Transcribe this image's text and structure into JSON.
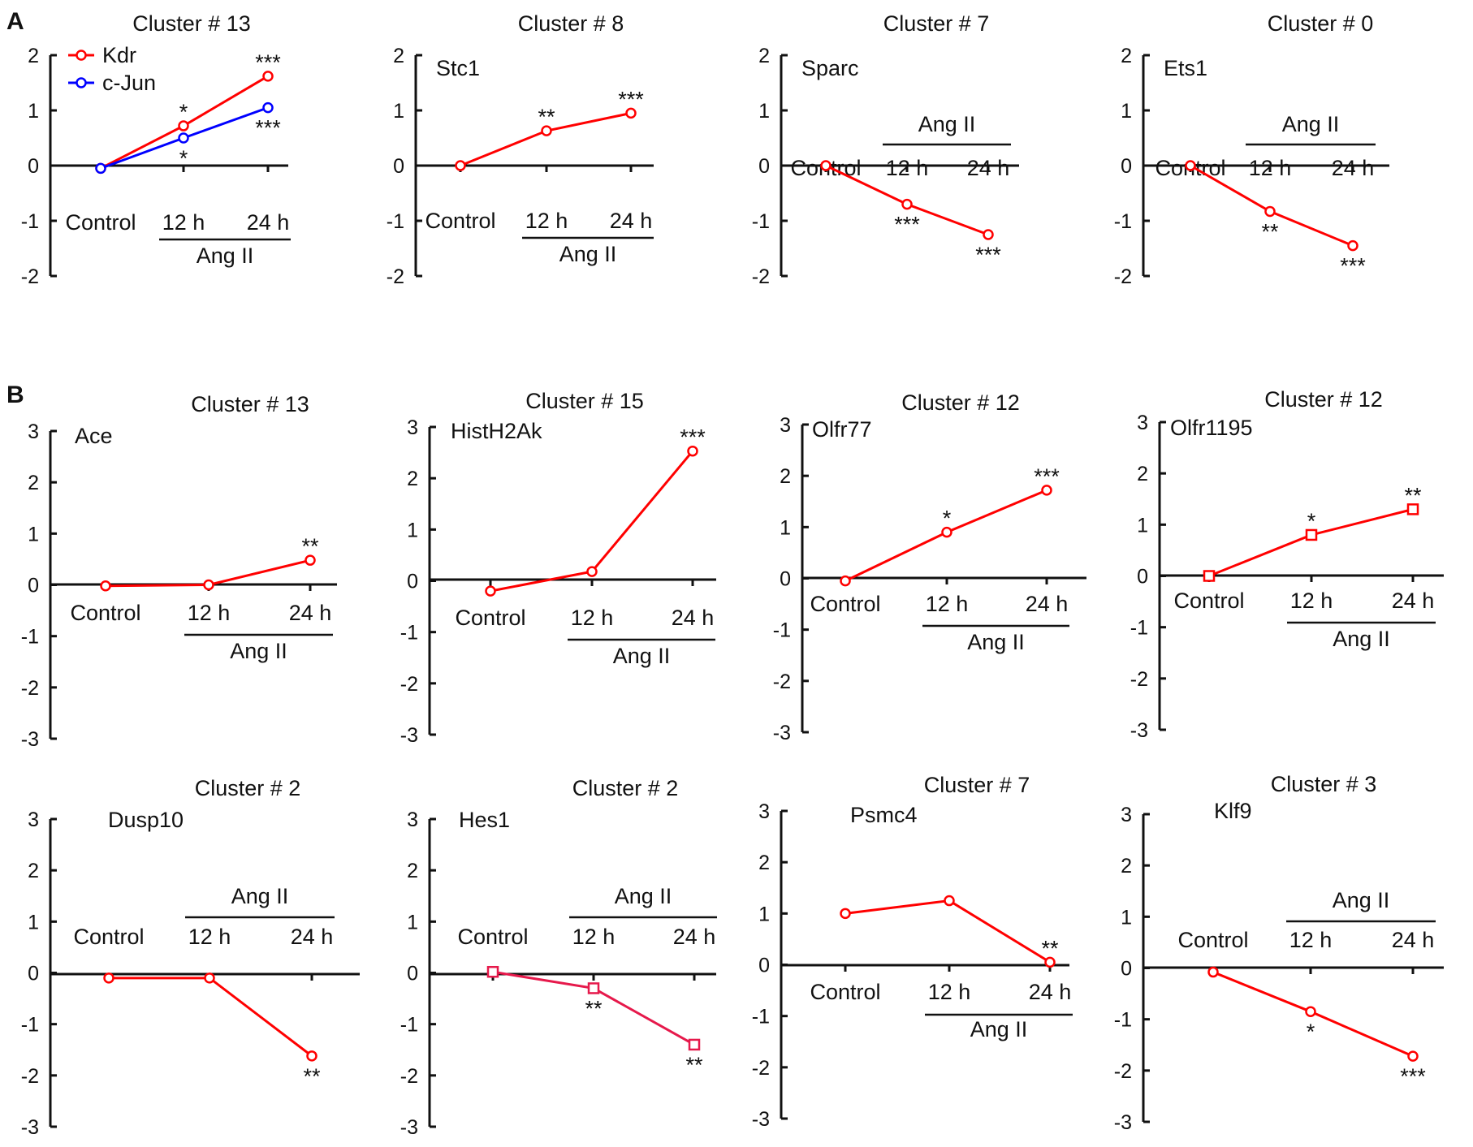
{
  "figure": {
    "panel_labels": [
      "A",
      "B"
    ],
    "bracket_label": "Ang II"
  },
  "legend": {
    "entries": [
      {
        "name": "Kdr",
        "color": "#ff0000"
      },
      {
        "name": "c-Jun",
        "color": "#0000ff"
      }
    ]
  },
  "colors": {
    "up_down_series": "#ff0000",
    "kdr": "#ff0000",
    "cjun": "#0000ff",
    "hes1": "#e6194b",
    "axis": "#111111"
  },
  "chart_data": [
    {
      "type": "line",
      "title": "Cluster # 13",
      "gene_label": "",
      "categories": [
        "Control",
        "12 h",
        "24 h"
      ],
      "ylim": [
        -2,
        2
      ],
      "yticks": [
        2,
        1,
        0,
        -1,
        -2
      ],
      "legend": "top-left",
      "series": [
        {
          "name": "Kdr",
          "color": "#ff0000",
          "marker": "circle",
          "values": [
            -0.05,
            0.72,
            1.62
          ],
          "significance": [
            "",
            "*",
            "***"
          ]
        },
        {
          "name": "c-Jun",
          "color": "#0000ff",
          "marker": "circle",
          "values": [
            -0.05,
            0.5,
            1.05
          ],
          "significance": [
            "",
            "*",
            "***"
          ]
        }
      ]
    },
    {
      "type": "line",
      "title": "Cluster # 8",
      "gene_label": "Stc1",
      "categories": [
        "Control",
        "12 h",
        "24 h"
      ],
      "ylim": [
        -2,
        2
      ],
      "yticks": [
        2,
        1,
        0,
        -1,
        -2
      ],
      "series": [
        {
          "name": "Stc1",
          "color": "#ff0000",
          "marker": "circle",
          "values": [
            0.0,
            0.63,
            0.95
          ],
          "significance": [
            "",
            "**",
            "***"
          ]
        }
      ]
    },
    {
      "type": "line",
      "title": "Cluster # 7",
      "gene_label": "Sparc",
      "categories": [
        "Control",
        "12 h",
        "24 h"
      ],
      "ylim": [
        -2,
        2
      ],
      "yticks": [
        2,
        1,
        0,
        -1,
        -2
      ],
      "series": [
        {
          "name": "Sparc",
          "color": "#ff0000",
          "marker": "circle",
          "values": [
            0.0,
            -0.7,
            -1.25
          ],
          "significance": [
            "",
            "***",
            "***"
          ]
        }
      ]
    },
    {
      "type": "line",
      "title": "Cluster # 0",
      "gene_label": "Ets1",
      "categories": [
        "Control",
        "12 h",
        "24 h"
      ],
      "ylim": [
        -2,
        2
      ],
      "yticks": [
        2,
        1,
        0,
        -1,
        -2
      ],
      "series": [
        {
          "name": "Ets1",
          "color": "#ff0000",
          "marker": "circle",
          "values": [
            0.0,
            -0.83,
            -1.45
          ],
          "significance": [
            "",
            "**",
            "***"
          ]
        }
      ]
    },
    {
      "type": "line",
      "title": "Cluster # 13",
      "gene_label": "Ace",
      "categories": [
        "Control",
        "12 h",
        "24 h"
      ],
      "ylim": [
        -3,
        3
      ],
      "yticks": [
        3,
        2,
        1,
        0,
        -1,
        -2,
        -3
      ],
      "series": [
        {
          "name": "Ace",
          "color": "#ff0000",
          "marker": "circle",
          "values": [
            -0.02,
            0.0,
            0.48
          ],
          "significance": [
            "",
            "",
            "**"
          ]
        }
      ]
    },
    {
      "type": "line",
      "title": "Cluster # 15",
      "gene_label": "HistH2Ak",
      "categories": [
        "Control",
        "12 h",
        "24 h"
      ],
      "ylim": [
        -3,
        3
      ],
      "yticks": [
        3,
        2,
        1,
        0,
        -1,
        -2,
        -3
      ],
      "series": [
        {
          "name": "HistH2Ak",
          "color": "#ff0000",
          "marker": "circle",
          "values": [
            -0.2,
            0.18,
            2.53
          ],
          "significance": [
            "",
            "",
            "***"
          ]
        }
      ]
    },
    {
      "type": "line",
      "title": "Cluster # 12",
      "gene_label": "Olfr77",
      "categories": [
        "Control",
        "12 h",
        "24 h"
      ],
      "ylim": [
        -3,
        3
      ],
      "yticks": [
        3,
        2,
        1,
        0,
        -1,
        -2,
        -3
      ],
      "series": [
        {
          "name": "Olfr77",
          "color": "#ff0000",
          "marker": "circle",
          "values": [
            -0.05,
            0.9,
            1.72
          ],
          "significance": [
            "",
            "*",
            "***"
          ]
        }
      ]
    },
    {
      "type": "line",
      "title": "Cluster # 12",
      "gene_label": "Olfr1195",
      "categories": [
        "Control",
        "12 h",
        "24 h"
      ],
      "ylim": [
        -3,
        3
      ],
      "yticks": [
        3,
        2,
        1,
        0,
        -1,
        -2,
        -3
      ],
      "series": [
        {
          "name": "Olfr1195",
          "color": "#ff0000",
          "marker": "square",
          "values": [
            0.0,
            0.8,
            1.3
          ],
          "significance": [
            "",
            "*",
            "**"
          ]
        }
      ]
    },
    {
      "type": "line",
      "title": "Cluster # 2",
      "gene_label": "Dusp10",
      "categories": [
        "Control",
        "12 h",
        "24 h"
      ],
      "ylim": [
        -3,
        3
      ],
      "yticks": [
        3,
        2,
        1,
        0,
        -1,
        -2,
        -3
      ],
      "series": [
        {
          "name": "Dusp10",
          "color": "#ff0000",
          "marker": "circle",
          "values": [
            -0.1,
            -0.1,
            -1.62
          ],
          "significance": [
            "",
            "",
            "**"
          ]
        }
      ]
    },
    {
      "type": "line",
      "title": "Cluster # 2",
      "gene_label": "Hes1",
      "categories": [
        "Control",
        "12 h",
        "24 h"
      ],
      "ylim": [
        -3,
        3
      ],
      "yticks": [
        3,
        2,
        1,
        0,
        -1,
        -2,
        -3
      ],
      "series": [
        {
          "name": "Hes1",
          "color": "#e6194b",
          "marker": "square",
          "values": [
            0.02,
            -0.3,
            -1.4
          ],
          "significance": [
            "",
            "**",
            "**"
          ]
        }
      ]
    },
    {
      "type": "line",
      "title": "Cluster # 7",
      "gene_label": "Psmc4",
      "categories": [
        "Control",
        "12 h",
        "24 h"
      ],
      "ylim": [
        -3,
        3
      ],
      "yticks": [
        3,
        2,
        1,
        0,
        -1,
        -2,
        -3
      ],
      "series": [
        {
          "name": "Psmc4",
          "color": "#ff0000",
          "marker": "circle",
          "values": [
            1.0,
            1.25,
            0.05
          ],
          "significance": [
            "",
            "",
            "**"
          ]
        }
      ]
    },
    {
      "type": "line",
      "title": "Cluster # 3",
      "gene_label": "Klf9",
      "categories": [
        "Control",
        "12 h",
        "24 h"
      ],
      "ylim": [
        -3,
        3
      ],
      "yticks": [
        3,
        2,
        1,
        0,
        -1,
        -2,
        -3
      ],
      "series": [
        {
          "name": "Klf9",
          "color": "#ff0000",
          "marker": "circle",
          "values": [
            -0.08,
            -0.85,
            -1.72
          ],
          "significance": [
            "",
            "*",
            "***"
          ]
        }
      ]
    }
  ]
}
